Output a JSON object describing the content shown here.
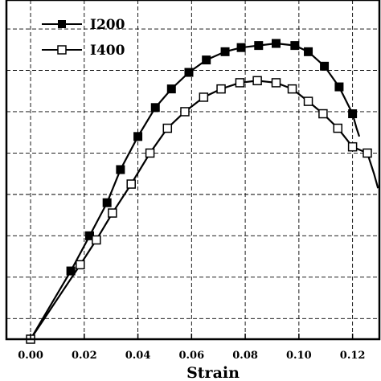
{
  "chart_data": {
    "type": "line",
    "title": "",
    "xlabel": "Strain",
    "ylabel": "",
    "xlim": [
      -0.009,
      0.13
    ],
    "ylim": [
      0,
      8.2
    ],
    "x_ticks": [
      0.0,
      0.02,
      0.04,
      0.06,
      0.08,
      0.1,
      0.12
    ],
    "x_tick_labels": [
      "0.00",
      "0.02",
      "0.04",
      "0.06",
      "0.08",
      "0.10",
      "0.12"
    ],
    "y_gridlines": [
      0.5,
      1.5,
      2.5,
      3.5,
      4.5,
      5.5,
      6.5,
      7.5
    ],
    "grid": true,
    "legend": {
      "placement": "top-left"
    },
    "series": [
      {
        "name": "I200",
        "marker": "filled-square",
        "points": [
          [
            0.0,
            0.0
          ],
          [
            0.015,
            1.65
          ],
          [
            0.022,
            2.5
          ],
          [
            0.0285,
            3.3
          ],
          [
            0.0335,
            4.1
          ],
          [
            0.04,
            4.9
          ],
          [
            0.0465,
            5.6
          ],
          [
            0.0525,
            6.05
          ],
          [
            0.059,
            6.45
          ],
          [
            0.0655,
            6.75
          ],
          [
            0.0725,
            6.95
          ],
          [
            0.0785,
            7.05
          ],
          [
            0.085,
            7.1
          ],
          [
            0.0915,
            7.15
          ],
          [
            0.0985,
            7.1
          ],
          [
            0.1035,
            6.95
          ],
          [
            0.1095,
            6.6
          ],
          [
            0.115,
            6.1
          ],
          [
            0.12,
            5.45
          ]
        ],
        "tail": [
          [
            0.12,
            5.45
          ],
          [
            0.1215,
            5.1
          ],
          [
            0.1225,
            4.9
          ]
        ]
      },
      {
        "name": "I400",
        "marker": "open-square",
        "points": [
          [
            0.0,
            0.0
          ],
          [
            0.0185,
            1.8
          ],
          [
            0.0245,
            2.4
          ],
          [
            0.0305,
            3.05
          ],
          [
            0.0375,
            3.75
          ],
          [
            0.0445,
            4.5
          ],
          [
            0.051,
            5.1
          ],
          [
            0.0575,
            5.5
          ],
          [
            0.0645,
            5.85
          ],
          [
            0.071,
            6.05
          ],
          [
            0.078,
            6.2
          ],
          [
            0.0845,
            6.25
          ],
          [
            0.0915,
            6.2
          ],
          [
            0.0975,
            6.05
          ],
          [
            0.1035,
            5.75
          ],
          [
            0.109,
            5.45
          ],
          [
            0.1145,
            5.1
          ],
          [
            0.12,
            4.65
          ],
          [
            0.1255,
            4.5
          ]
        ],
        "tail": [
          [
            0.1255,
            4.5
          ],
          [
            0.128,
            4.0
          ],
          [
            0.1295,
            3.65
          ]
        ]
      }
    ]
  }
}
